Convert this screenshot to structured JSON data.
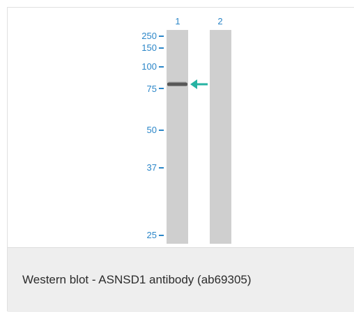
{
  "figure": {
    "lanes": [
      {
        "label": "1"
      },
      {
        "label": "2"
      }
    ],
    "markers": [
      {
        "label": "250"
      },
      {
        "label": "150"
      },
      {
        "label": "100"
      },
      {
        "label": "75"
      },
      {
        "label": "50"
      },
      {
        "label": "37"
      },
      {
        "label": "25"
      }
    ],
    "accent_color": "#2b86c8",
    "arrow_color": "#26b3a3",
    "lane_color": "#cfcfcf",
    "band_color": "#4a4a4a"
  },
  "caption": {
    "text": "Western blot - ASNSD1 antibody (ab69305)"
  }
}
